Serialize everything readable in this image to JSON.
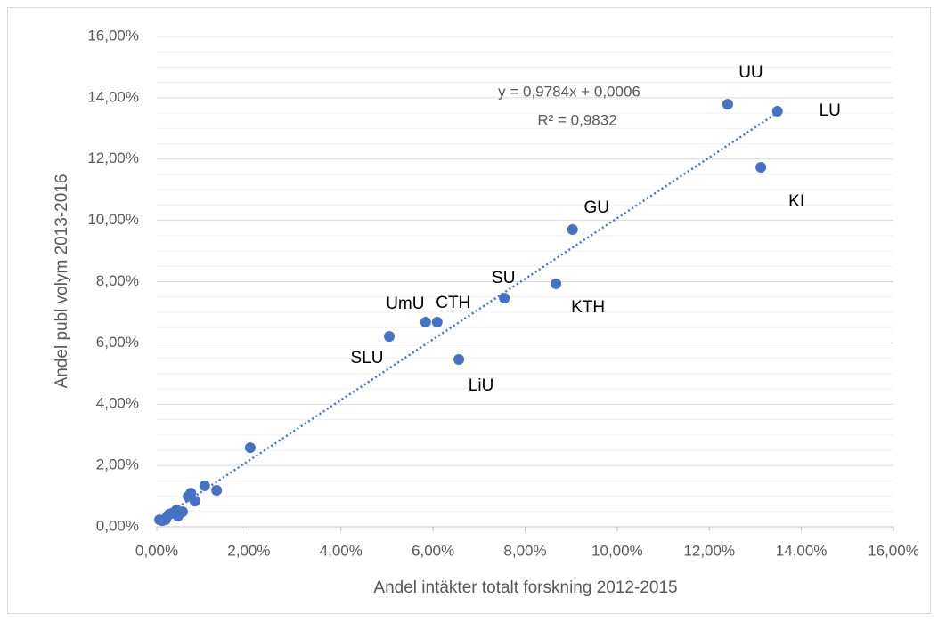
{
  "chart_data": {
    "type": "scatter",
    "x_label": "Andel intäkter totalt forskning 2012-2015",
    "y_label": "Andel publ volym 2013-2016",
    "color": "#4472c4",
    "grid": true,
    "minor_grid": true,
    "trendline": {
      "equation": "y = 0,9784x + 0,0006",
      "r2": "R² = 0,9832"
    },
    "xlim": [
      0,
      16
    ],
    "ylim": [
      0,
      16
    ],
    "xticks": [
      {
        "value": 0,
        "label": "0,00%"
      },
      {
        "value": 2,
        "label": "2,00%"
      },
      {
        "value": 4,
        "label": "4,00%"
      },
      {
        "value": 6,
        "label": "6,00%"
      },
      {
        "value": 8,
        "label": "8,00%"
      },
      {
        "value": 10,
        "label": "10,00%"
      },
      {
        "value": 12,
        "label": "12,00%"
      },
      {
        "value": 14,
        "label": "14,00%"
      },
      {
        "value": 16,
        "label": "16,00%"
      }
    ],
    "yticks": [
      {
        "value": 0,
        "label": "0,00%"
      },
      {
        "value": 2,
        "label": "2,00%"
      },
      {
        "value": 4,
        "label": "4,00%"
      },
      {
        "value": 6,
        "label": "6,00%"
      },
      {
        "value": 8,
        "label": "8,00%"
      },
      {
        "value": 10,
        "label": "10,00%"
      },
      {
        "value": 12,
        "label": "12,00%"
      },
      {
        "value": 14,
        "label": "14,00%"
      },
      {
        "value": 16,
        "label": "16,00%"
      }
    ],
    "labels": [
      "UU",
      "LU",
      "KI",
      "GU",
      "KTH",
      "SU",
      "CTH",
      "UmU",
      "SLU",
      "LiU",
      null,
      null,
      null,
      null,
      null,
      null,
      null,
      null,
      null,
      null,
      null,
      null,
      null,
      null,
      null
    ],
    "x": [
      12.4,
      13.48,
      13.12,
      9.03,
      8.67,
      7.55,
      6.09,
      5.84,
      5.05,
      6.56,
      2.03,
      1.3,
      1.04,
      0.74,
      0.83,
      0.68,
      0.43,
      0.56,
      0.46,
      0.33,
      0.23,
      0.19,
      0.12,
      0.06,
      0.27
    ],
    "y": [
      13.79,
      13.56,
      11.73,
      9.7,
      7.93,
      7.46,
      6.68,
      6.68,
      6.21,
      5.46,
      2.58,
      1.19,
      1.34,
      1.1,
      0.84,
      0.99,
      0.55,
      0.49,
      0.35,
      0.44,
      0.35,
      0.23,
      0.2,
      0.23,
      0.41
    ]
  }
}
